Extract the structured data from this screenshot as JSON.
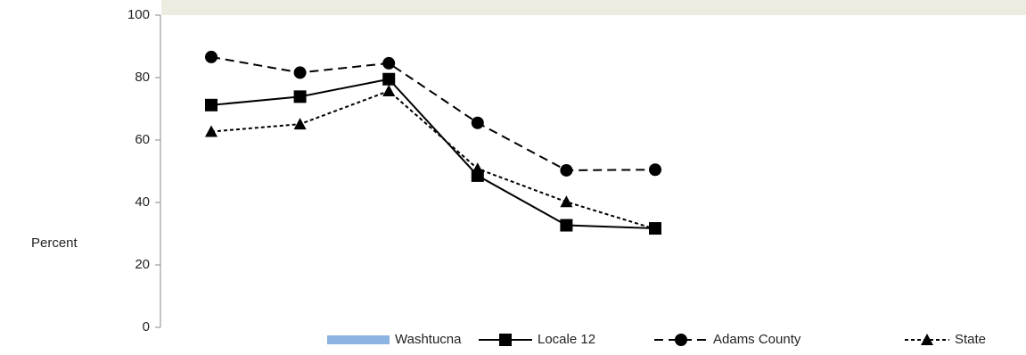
{
  "chart_data": {
    "type": "line",
    "ylabel": "Percent",
    "categories": [
      null,
      null,
      null,
      null,
      null,
      null
    ],
    "ylim": [
      0,
      100
    ],
    "yticks": [
      0,
      20,
      40,
      60,
      80,
      100
    ],
    "legend": "bottom",
    "series": [
      {
        "name": "Washtucna",
        "color": "#8db3e2",
        "kind": "bar",
        "values": [
          null,
          null,
          null,
          null,
          null,
          null
        ]
      },
      {
        "name": "Locale 12",
        "color": "#000000",
        "line_style": "solid",
        "marker": "square",
        "values": [
          71.2,
          73.9,
          79.5,
          48.6,
          32.7,
          31.7
        ]
      },
      {
        "name": "Adams County",
        "color": "#000000",
        "line_style": "dashed",
        "marker": "circle",
        "values": [
          86.6,
          81.6,
          84.6,
          65.5,
          50.3,
          50.5
        ]
      },
      {
        "name": "State",
        "color": "#000000",
        "line_style": "dotted",
        "marker": "triangle",
        "values": [
          62.7,
          65.1,
          75.7,
          50.8,
          40.2,
          31.5
        ]
      }
    ]
  }
}
